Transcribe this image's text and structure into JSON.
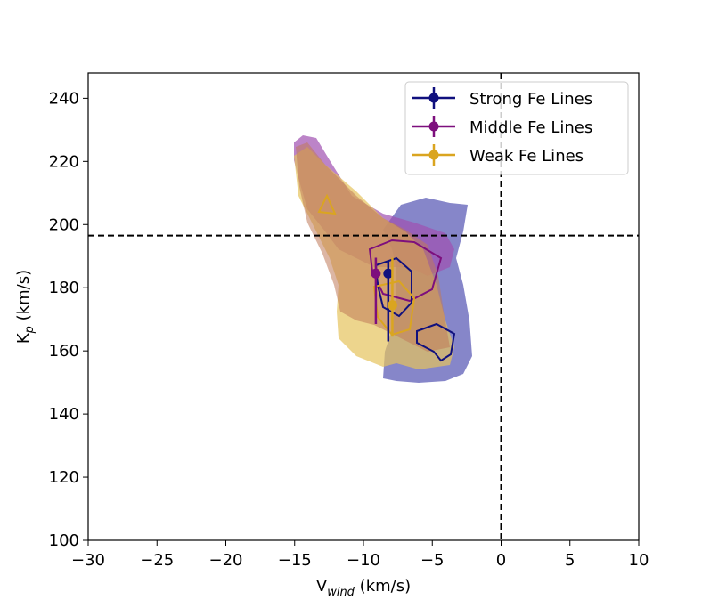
{
  "chart_data": {
    "type": "errorbar",
    "xlabel": {
      "main": "V",
      "sub": "wind",
      "rest": " (km/s)"
    },
    "ylabel": {
      "main": "K",
      "sub": "p",
      "rest": " (km/s)"
    },
    "xlim": [
      -30,
      10
    ],
    "ylim": [
      100,
      248
    ],
    "xticks": [
      {
        "value": -30,
        "label": "−30"
      },
      {
        "value": -25,
        "label": "−25"
      },
      {
        "value": -20,
        "label": "−20"
      },
      {
        "value": -15,
        "label": "−15"
      },
      {
        "value": -10,
        "label": "−10"
      },
      {
        "value": -5,
        "label": "−5"
      },
      0,
      5,
      10
    ],
    "yticks": [
      100,
      120,
      140,
      160,
      180,
      200,
      220,
      240
    ],
    "vline": 0,
    "hline": 196.5,
    "legend": "upper right",
    "series": [
      {
        "name": "Strong Fe Lines",
        "color": "#10107e",
        "x": -8.2,
        "y": 184.5,
        "yerr_lower": 21.5,
        "yerr_upper": 4
      },
      {
        "name": "Middle Fe Lines",
        "color": "#7d0f7d",
        "x": -9.1,
        "y": 184.5,
        "yerr_lower": 16,
        "yerr_upper": 5
      },
      {
        "name": "Weak Fe Lines",
        "color": "#daa520",
        "x": -7.9,
        "y": 174.5,
        "yerr_lower": 10,
        "yerr_upper": 15
      }
    ]
  }
}
